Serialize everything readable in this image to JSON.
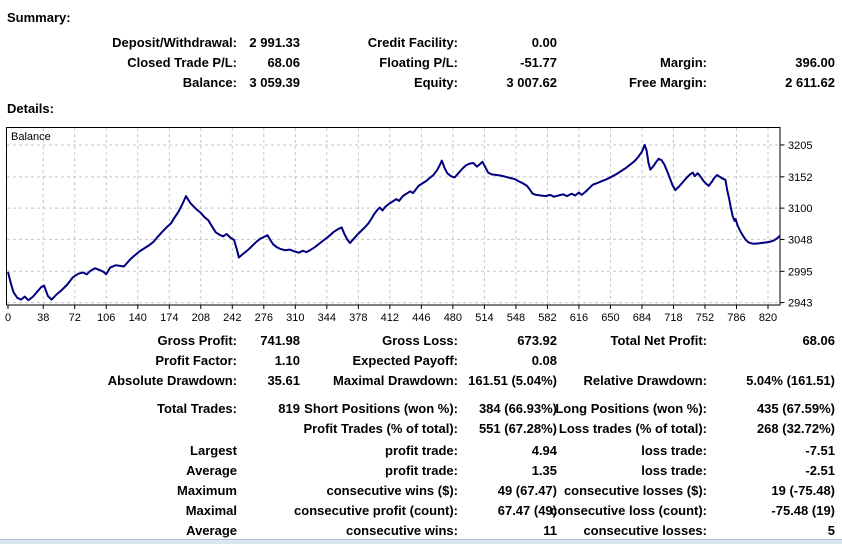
{
  "summary": {
    "heading": "Summary:",
    "rows": [
      [
        "Deposit/Withdrawal:",
        "2 991.33",
        "Credit Facility:",
        "0.00",
        "",
        ""
      ],
      [
        "Closed Trade P/L:",
        "68.06",
        "Floating P/L:",
        "-51.77",
        "Margin:",
        "396.00"
      ],
      [
        "Balance:",
        "3 059.39",
        "Equity:",
        "3 007.62",
        "Free Margin:",
        "2 611.62"
      ]
    ]
  },
  "details_heading": "Details:",
  "chart_data": {
    "type": "line",
    "title": "",
    "series_label": "Balance",
    "xlabel": "",
    "ylabel": "",
    "x_ticks": [
      0,
      38,
      72,
      106,
      140,
      174,
      208,
      242,
      276,
      310,
      344,
      378,
      412,
      446,
      480,
      514,
      548,
      582,
      616,
      650,
      684,
      718,
      752,
      786,
      820
    ],
    "y_ticks": [
      3205,
      3152,
      3100,
      3048,
      2995,
      2943
    ],
    "x_range": [
      0,
      833
    ],
    "y_range": [
      2939,
      3234
    ],
    "grid": true,
    "line_color": "#000080",
    "grid_color": "#c6c6c6",
    "points": [
      [
        0,
        2994
      ],
      [
        3,
        2975
      ],
      [
        6,
        2960
      ],
      [
        10,
        2951
      ],
      [
        14,
        2948
      ],
      [
        18,
        2953
      ],
      [
        22,
        2947
      ],
      [
        27,
        2953
      ],
      [
        32,
        2962
      ],
      [
        36,
        2969
      ],
      [
        39,
        2971
      ],
      [
        43,
        2954
      ],
      [
        47,
        2948
      ],
      [
        52,
        2956
      ],
      [
        58,
        2964
      ],
      [
        64,
        2973
      ],
      [
        70,
        2985
      ],
      [
        76,
        2991
      ],
      [
        81,
        2993
      ],
      [
        85,
        2990
      ],
      [
        89,
        2996
      ],
      [
        94,
        3000
      ],
      [
        99,
        2997
      ],
      [
        103,
        2994
      ],
      [
        106,
        2990
      ],
      [
        110,
        3001
      ],
      [
        116,
        3005
      ],
      [
        121,
        3004
      ],
      [
        125,
        3003
      ],
      [
        128,
        3008
      ],
      [
        132,
        3015
      ],
      [
        137,
        3022
      ],
      [
        142,
        3028
      ],
      [
        147,
        3033
      ],
      [
        152,
        3038
      ],
      [
        157,
        3044
      ],
      [
        162,
        3053
      ],
      [
        166,
        3060
      ],
      [
        171,
        3068
      ],
      [
        176,
        3075
      ],
      [
        180,
        3085
      ],
      [
        184,
        3094
      ],
      [
        188,
        3106
      ],
      [
        192,
        3120
      ],
      [
        194,
        3115
      ],
      [
        197,
        3108
      ],
      [
        200,
        3103
      ],
      [
        204,
        3097
      ],
      [
        208,
        3092
      ],
      [
        212,
        3085
      ],
      [
        216,
        3080
      ],
      [
        220,
        3070
      ],
      [
        224,
        3060
      ],
      [
        228,
        3056
      ],
      [
        232,
        3053
      ],
      [
        236,
        3057
      ],
      [
        240,
        3051
      ],
      [
        244,
        3047
      ],
      [
        247,
        3031
      ],
      [
        249,
        3018
      ],
      [
        252,
        3022
      ],
      [
        256,
        3027
      ],
      [
        260,
        3032
      ],
      [
        264,
        3038
      ],
      [
        268,
        3044
      ],
      [
        272,
        3049
      ],
      [
        276,
        3052
      ],
      [
        280,
        3055
      ],
      [
        283,
        3047
      ],
      [
        286,
        3040
      ],
      [
        290,
        3035
      ],
      [
        294,
        3032
      ],
      [
        299,
        3030
      ],
      [
        304,
        3031
      ],
      [
        309,
        3028
      ],
      [
        314,
        3026
      ],
      [
        318,
        3029
      ],
      [
        322,
        3027
      ],
      [
        326,
        3030
      ],
      [
        331,
        3035
      ],
      [
        336,
        3041
      ],
      [
        341,
        3047
      ],
      [
        346,
        3053
      ],
      [
        351,
        3060
      ],
      [
        356,
        3065
      ],
      [
        360,
        3068
      ],
      [
        363,
        3057
      ],
      [
        366,
        3048
      ],
      [
        369,
        3042
      ],
      [
        373,
        3049
      ],
      [
        377,
        3056
      ],
      [
        381,
        3062
      ],
      [
        385,
        3068
      ],
      [
        389,
        3075
      ],
      [
        392,
        3082
      ],
      [
        395,
        3090
      ],
      [
        398,
        3096
      ],
      [
        401,
        3101
      ],
      [
        404,
        3096
      ],
      [
        407,
        3102
      ],
      [
        411,
        3107
      ],
      [
        415,
        3111
      ],
      [
        419,
        3115
      ],
      [
        422,
        3112
      ],
      [
        426,
        3120
      ],
      [
        430,
        3124
      ],
      [
        434,
        3128
      ],
      [
        437,
        3125
      ],
      [
        440,
        3131
      ],
      [
        443,
        3137
      ],
      [
        447,
        3141
      ],
      [
        451,
        3145
      ],
      [
        455,
        3150
      ],
      [
        459,
        3155
      ],
      [
        463,
        3163
      ],
      [
        466,
        3172
      ],
      [
        468,
        3179
      ],
      [
        471,
        3167
      ],
      [
        474,
        3158
      ],
      [
        478,
        3153
      ],
      [
        482,
        3151
      ],
      [
        486,
        3158
      ],
      [
        490,
        3165
      ],
      [
        494,
        3171
      ],
      [
        498,
        3174
      ],
      [
        502,
        3175
      ],
      [
        506,
        3169
      ],
      [
        509,
        3173
      ],
      [
        512,
        3177
      ],
      [
        515,
        3168
      ],
      [
        518,
        3159
      ],
      [
        522,
        3156
      ],
      [
        527,
        3155
      ],
      [
        532,
        3154
      ],
      [
        537,
        3152
      ],
      [
        542,
        3150
      ],
      [
        547,
        3148
      ],
      [
        552,
        3144
      ],
      [
        556,
        3141
      ],
      [
        560,
        3137
      ],
      [
        563,
        3131
      ],
      [
        566,
        3124
      ],
      [
        570,
        3122
      ],
      [
        575,
        3121
      ],
      [
        580,
        3120
      ],
      [
        585,
        3122
      ],
      [
        589,
        3119
      ],
      [
        594,
        3121
      ],
      [
        599,
        3123
      ],
      [
        603,
        3120
      ],
      [
        608,
        3124
      ],
      [
        612,
        3121
      ],
      [
        616,
        3126
      ],
      [
        619,
        3122
      ],
      [
        623,
        3127
      ],
      [
        627,
        3133
      ],
      [
        631,
        3139
      ],
      [
        636,
        3142
      ],
      [
        641,
        3145
      ],
      [
        646,
        3148
      ],
      [
        651,
        3152
      ],
      [
        656,
        3156
      ],
      [
        661,
        3161
      ],
      [
        666,
        3166
      ],
      [
        671,
        3172
      ],
      [
        676,
        3178
      ],
      [
        680,
        3185
      ],
      [
        684,
        3194
      ],
      [
        687,
        3205
      ],
      [
        689,
        3196
      ],
      [
        691,
        3176
      ],
      [
        693,
        3164
      ],
      [
        696,
        3169
      ],
      [
        699,
        3176
      ],
      [
        702,
        3182
      ],
      [
        705,
        3180
      ],
      [
        708,
        3173
      ],
      [
        711,
        3162
      ],
      [
        714,
        3150
      ],
      [
        717,
        3138
      ],
      [
        720,
        3130
      ],
      [
        724,
        3136
      ],
      [
        728,
        3143
      ],
      [
        732,
        3150
      ],
      [
        736,
        3156
      ],
      [
        739,
        3159
      ],
      [
        741,
        3153
      ],
      [
        744,
        3158
      ],
      [
        747,
        3153
      ],
      [
        750,
        3146
      ],
      [
        753,
        3141
      ],
      [
        756,
        3137
      ],
      [
        759,
        3143
      ],
      [
        762,
        3150
      ],
      [
        765,
        3155
      ],
      [
        768,
        3152
      ],
      [
        771,
        3149
      ],
      [
        774,
        3147
      ],
      [
        776,
        3130
      ],
      [
        778,
        3116
      ],
      [
        780,
        3100
      ],
      [
        782,
        3086
      ],
      [
        784,
        3079
      ],
      [
        785,
        3082
      ],
      [
        787,
        3072
      ],
      [
        790,
        3062
      ],
      [
        793,
        3054
      ],
      [
        796,
        3047
      ],
      [
        799,
        3043
      ],
      [
        803,
        3041
      ],
      [
        808,
        3041
      ],
      [
        813,
        3042
      ],
      [
        818,
        3043
      ],
      [
        822,
        3044
      ],
      [
        826,
        3046
      ],
      [
        830,
        3050
      ],
      [
        833,
        3054
      ]
    ]
  },
  "stats": {
    "groups": [
      {
        "rows": [
          [
            "Gross Profit:",
            "741.98",
            "Gross Loss:",
            "673.92",
            "Total Net Profit:",
            "68.06"
          ],
          [
            "Profit Factor:",
            "1.10",
            "Expected Payoff:",
            "0.08",
            "",
            ""
          ],
          [
            "Absolute Drawdown:",
            "35.61",
            "Maximal Drawdown:",
            "161.51 (5.04%)",
            "Relative Drawdown:",
            "5.04% (161.51)"
          ]
        ]
      },
      {
        "rows": [
          [
            "Total Trades:",
            "819",
            "Short Positions (won %):",
            "384 (66.93%)",
            "Long Positions (won %):",
            "435 (67.59%)"
          ],
          [
            "",
            "",
            "Profit Trades (% of total):",
            "551 (67.28%)",
            "Loss trades (% of total):",
            "268 (32.72%)"
          ]
        ]
      },
      {
        "rows": [
          [
            "Largest",
            "",
            "profit trade:",
            "4.94",
            "loss trade:",
            "-7.51"
          ],
          [
            "Average",
            "",
            "profit trade:",
            "1.35",
            "loss trade:",
            "-2.51"
          ],
          [
            "Maximum",
            "",
            "consecutive wins ($):",
            "49 (67.47)",
            "consecutive losses ($):",
            "19 (-75.48)"
          ],
          [
            "Maximal",
            "",
            "consecutive profit (count):",
            "67.47 (49)",
            "consecutive loss (count):",
            "-75.48 (19)"
          ],
          [
            "Average",
            "",
            "consecutive wins:",
            "11",
            "consecutive losses:",
            "5"
          ]
        ]
      }
    ]
  }
}
